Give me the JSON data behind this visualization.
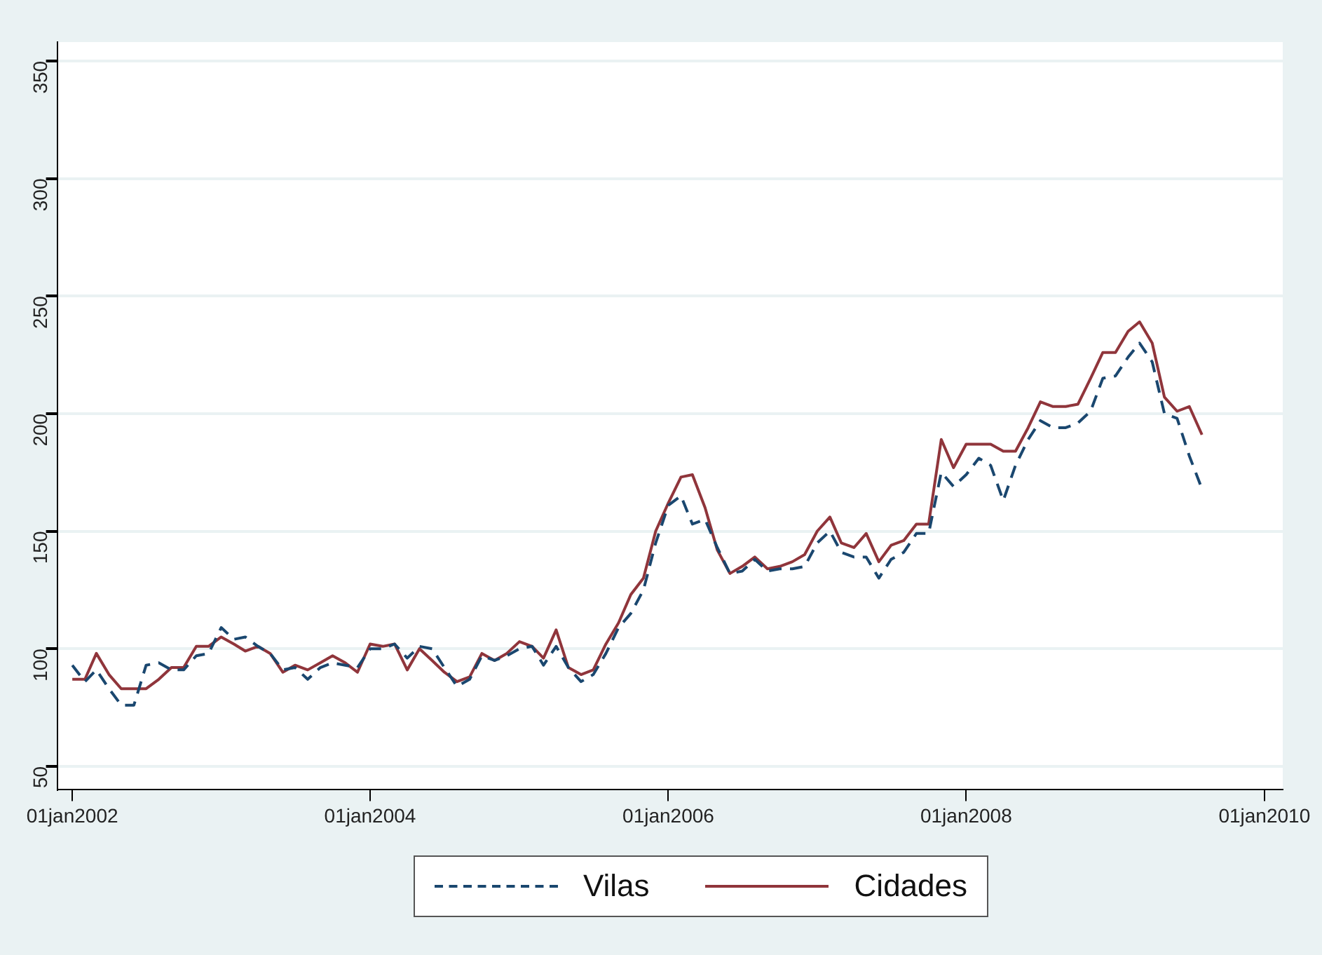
{
  "chart_data": {
    "type": "line",
    "x": [
      "2002-01",
      "2002-02",
      "2002-03",
      "2002-04",
      "2002-05",
      "2002-06",
      "2002-07",
      "2002-08",
      "2002-09",
      "2002-10",
      "2002-11",
      "2002-12",
      "2003-01",
      "2003-02",
      "2003-03",
      "2003-04",
      "2003-05",
      "2003-06",
      "2003-07",
      "2003-08",
      "2003-09",
      "2003-10",
      "2003-11",
      "2003-12",
      "2004-01",
      "2004-02",
      "2004-03",
      "2004-04",
      "2004-05",
      "2004-06",
      "2004-07",
      "2004-08",
      "2004-09",
      "2004-10",
      "2004-11",
      "2004-12",
      "2005-01",
      "2005-02",
      "2005-03",
      "2005-04",
      "2005-05",
      "2005-06",
      "2005-07",
      "2005-08",
      "2005-09",
      "2005-10",
      "2005-11",
      "2005-12",
      "2006-01",
      "2006-02",
      "2006-03",
      "2006-04",
      "2006-05",
      "2006-06",
      "2006-07",
      "2006-08",
      "2006-09",
      "2006-10",
      "2006-11",
      "2006-12",
      "2007-01",
      "2007-02",
      "2007-03",
      "2007-04",
      "2007-05",
      "2007-06",
      "2007-07",
      "2007-08",
      "2007-09",
      "2007-10",
      "2007-11",
      "2007-12",
      "2008-01",
      "2008-02",
      "2008-03",
      "2008-04",
      "2008-05",
      "2008-06",
      "2008-07",
      "2008-08",
      "2008-09",
      "2008-10",
      "2008-11",
      "2008-12",
      "2009-01",
      "2009-02",
      "2009-03",
      "2009-04",
      "2009-05",
      "2009-06",
      "2009-07",
      "2009-08"
    ],
    "series": [
      {
        "name": "Vilas",
        "color": "#1a476f",
        "line_style": "dashed",
        "values": [
          93,
          86,
          91,
          83,
          76,
          76,
          93,
          94,
          91,
          91,
          97,
          98,
          109,
          104,
          105,
          101,
          98,
          91,
          92,
          87,
          92,
          94,
          93,
          92,
          100,
          100,
          102,
          96,
          101,
          100,
          92,
          84,
          87,
          97,
          95,
          97,
          100,
          101,
          93,
          101,
          92,
          86,
          89,
          98,
          109,
          115,
          125,
          145,
          161,
          165,
          153,
          155,
          143,
          132,
          133,
          138,
          133,
          134,
          134,
          135,
          145,
          150,
          141,
          139,
          139,
          130,
          138,
          141,
          149,
          149,
          175,
          169,
          174,
          181,
          178,
          163,
          178,
          189,
          197,
          194,
          194,
          196,
          201,
          215,
          216,
          224,
          230,
          222,
          200,
          198,
          182,
          168
        ]
      },
      {
        "name": "Cidades",
        "color": "#90353b",
        "line_style": "solid",
        "values": [
          87,
          87,
          98,
          89,
          83,
          83,
          83,
          87,
          92,
          92,
          101,
          101,
          105,
          102,
          99,
          101,
          98,
          90,
          93,
          91,
          94,
          97,
          94,
          90,
          102,
          101,
          102,
          91,
          100,
          95,
          90,
          86,
          88,
          98,
          95,
          98,
          103,
          101,
          96,
          108,
          92,
          89,
          91,
          102,
          111,
          123,
          130,
          150,
          162,
          173,
          174,
          160,
          142,
          132,
          135,
          139,
          134,
          135,
          137,
          140,
          150,
          156,
          145,
          143,
          149,
          137,
          144,
          146,
          153,
          153,
          189,
          177,
          187,
          187,
          187,
          184,
          184,
          194,
          205,
          203,
          203,
          204,
          215,
          226,
          226,
          235,
          239,
          230,
          207,
          201,
          203,
          191
        ]
      }
    ],
    "ylim": [
      40,
      358
    ],
    "yticks": [
      50,
      100,
      150,
      200,
      250,
      300,
      350
    ],
    "xlim": [
      "2001-11-25",
      "2010-02-15"
    ],
    "xticks": [
      {
        "value": "2002-01-01",
        "label": "01jan2002"
      },
      {
        "value": "2004-01-01",
        "label": "01jan2004"
      },
      {
        "value": "2006-01-01",
        "label": "01jan2006"
      },
      {
        "value": "2008-01-01",
        "label": "01jan2008"
      },
      {
        "value": "2010-01-01",
        "label": "01jan2010"
      }
    ],
    "grid": "y",
    "legend": "bottom",
    "marker": "none"
  }
}
